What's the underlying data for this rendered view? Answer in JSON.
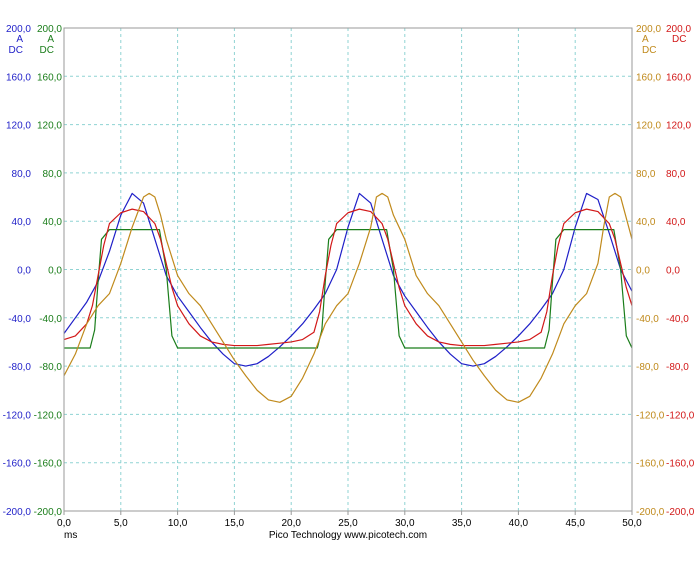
{
  "chart_data": {
    "type": "line",
    "footer": {
      "x_unit": "ms",
      "credit": "Pico Technology  www.picotech.com"
    },
    "x_axis": {
      "range": [
        0,
        50
      ],
      "tick_values": [
        0,
        5,
        10,
        15,
        20,
        25,
        30,
        35,
        40,
        45,
        50
      ],
      "tick_labels": [
        "0,0",
        "5,0",
        "10,0",
        "15,0",
        "20,0",
        "25,0",
        "30,0",
        "35,0",
        "40,0",
        "45,0",
        "50,0"
      ]
    },
    "y_axis": {
      "range": [
        -200,
        200
      ],
      "tick_values": [
        200,
        160,
        120,
        80,
        40,
        0,
        -40,
        -80,
        -120,
        -160,
        -200
      ],
      "tick_labels": [
        "200,0",
        "160,0",
        "120,0",
        "80,0",
        "40,0",
        "0,0",
        "-40,0",
        "-80,0",
        "-120,0",
        "-160,0",
        "-200,0"
      ]
    },
    "grid": true,
    "scales": [
      {
        "id": "blue",
        "side": "left",
        "order": 0,
        "color": "#1f1fc8",
        "unit": "A",
        "coupling": "DC"
      },
      {
        "id": "green",
        "side": "left",
        "order": 1,
        "color": "#1a7d1a",
        "unit": "A",
        "coupling": "DC"
      },
      {
        "id": "gold",
        "side": "right",
        "order": 0,
        "color": "#c08a1c",
        "unit": "A",
        "coupling": "DC"
      },
      {
        "id": "red",
        "side": "right",
        "order": 1,
        "color": "#d21818",
        "unit": "DC"
      }
    ],
    "series": [
      {
        "id": "blue",
        "color": "#1f1fc8",
        "x": [
          0,
          1,
          2,
          3,
          4,
          5,
          6,
          7,
          8,
          9,
          10,
          11,
          12,
          13,
          14,
          15,
          16,
          17,
          18,
          19,
          20,
          21,
          22,
          23,
          24,
          25,
          26,
          27,
          28,
          29,
          30,
          31,
          32,
          33,
          34,
          35,
          36,
          37,
          38,
          39,
          40,
          41,
          42,
          43,
          44,
          45,
          46,
          47,
          48,
          49,
          50
        ],
        "y": [
          -53,
          -40,
          -27,
          -10,
          15,
          45,
          63,
          55,
          25,
          -5,
          -22,
          -35,
          -48,
          -60,
          -70,
          -78,
          -80,
          -78,
          -72,
          -64,
          -55,
          -45,
          -33,
          -20,
          0,
          35,
          63,
          55,
          25,
          -5,
          -22,
          -35,
          -48,
          -60,
          -70,
          -78,
          -80,
          -78,
          -72,
          -64,
          -55,
          -45,
          -33,
          -20,
          0,
          35,
          63,
          58,
          30,
          0,
          -18
        ]
      },
      {
        "id": "green",
        "color": "#1a7d1a",
        "x": [
          0,
          2.3,
          2.7,
          3,
          3.3,
          4,
          5,
          7,
          8.4,
          9,
          9.5,
          10,
          12,
          16,
          20,
          22.3,
          22.7,
          23,
          23.3,
          24,
          25,
          27,
          28.4,
          29,
          29.5,
          30,
          32,
          36,
          40,
          42.3,
          42.7,
          43,
          43.3,
          44,
          45,
          47,
          48.4,
          49,
          49.5,
          50
        ],
        "y": [
          -65,
          -65,
          -50,
          -10,
          25,
          33,
          33,
          33,
          33,
          0,
          -55,
          -65,
          -65,
          -65,
          -65,
          -65,
          -50,
          -10,
          25,
          33,
          33,
          33,
          33,
          0,
          -55,
          -65,
          -65,
          -65,
          -65,
          -65,
          -50,
          -10,
          25,
          33,
          33,
          33,
          33,
          0,
          -55,
          -65
        ]
      },
      {
        "id": "red",
        "color": "#d21818",
        "x": [
          0,
          1,
          2,
          2.5,
          3,
          3.5,
          4,
          5,
          6,
          7,
          8,
          8.5,
          9,
          9.5,
          10,
          11,
          12,
          13,
          14,
          15,
          16,
          17,
          18,
          19,
          20,
          21,
          22,
          22.5,
          23,
          23.5,
          24,
          25,
          26,
          27,
          28,
          28.5,
          29,
          29.5,
          30,
          31,
          32,
          33,
          34,
          35,
          36,
          37,
          38,
          39,
          40,
          41,
          42,
          42.5,
          43,
          43.5,
          44,
          45,
          46,
          47,
          48,
          48.5,
          49,
          49.5,
          50
        ],
        "y": [
          -58,
          -55,
          -45,
          -30,
          -5,
          20,
          38,
          47,
          50,
          48,
          38,
          25,
          5,
          -15,
          -30,
          -45,
          -55,
          -60,
          -62,
          -63,
          -63,
          -63,
          -62,
          -61,
          -60,
          -58,
          -52,
          -35,
          -5,
          20,
          38,
          47,
          50,
          48,
          38,
          25,
          5,
          -15,
          -30,
          -45,
          -55,
          -60,
          -62,
          -63,
          -63,
          -63,
          -62,
          -61,
          -60,
          -58,
          -52,
          -35,
          -5,
          20,
          38,
          47,
          50,
          48,
          38,
          25,
          5,
          -15,
          -30
        ]
      },
      {
        "id": "gold",
        "color": "#c08a1c",
        "x": [
          0,
          1,
          2,
          3,
          4,
          5,
          6,
          7,
          7.5,
          8,
          8.5,
          9,
          10,
          11,
          12,
          13,
          14,
          15,
          16,
          17,
          18,
          19,
          20,
          21,
          22,
          23,
          24,
          25,
          26,
          27,
          27.5,
          28,
          28.5,
          29,
          30,
          31,
          32,
          33,
          34,
          35,
          36,
          37,
          38,
          39,
          40,
          41,
          42,
          43,
          44,
          45,
          46,
          47,
          47.5,
          48,
          48.5,
          49,
          50
        ],
        "y": [
          -88,
          -70,
          -45,
          -30,
          -20,
          5,
          35,
          60,
          63,
          60,
          45,
          25,
          -5,
          -20,
          -30,
          -45,
          -60,
          -75,
          -88,
          -100,
          -108,
          -110,
          -105,
          -90,
          -70,
          -45,
          -30,
          -20,
          5,
          35,
          60,
          63,
          60,
          45,
          25,
          -5,
          -20,
          -30,
          -45,
          -60,
          -75,
          -88,
          -100,
          -108,
          -110,
          -105,
          -90,
          -70,
          -45,
          -30,
          -20,
          5,
          35,
          60,
          63,
          60,
          25
        ]
      }
    ]
  }
}
